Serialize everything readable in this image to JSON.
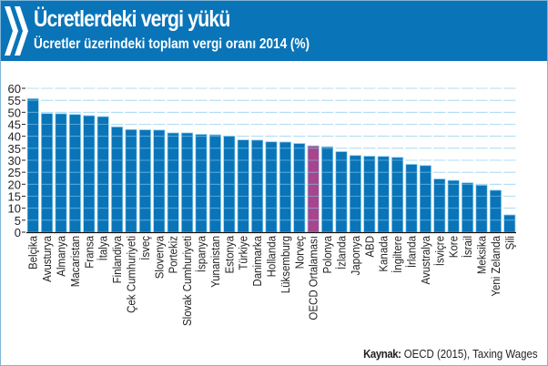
{
  "header": {
    "title": "Ücretlerdeki vergi yükü",
    "subtitle": "Ücretler üzerindeki toplam vergi oranı 2014 (%)",
    "logo_icon": "double-chevron-icon"
  },
  "source": {
    "label": "Kaynak:",
    "text": "OECD (2015), Taxing Wages"
  },
  "colors": {
    "header": "#0a74b8",
    "bar": "#0a74b8",
    "highlight": "#a8458c",
    "bar_edge": "#8fd0f0"
  },
  "chart_data": {
    "type": "bar",
    "title": "Ücretler üzerindeki toplam vergi oranı 2014 (%)",
    "xlabel": "",
    "ylabel": "",
    "ylim": [
      0,
      60
    ],
    "yticks": [
      0,
      5,
      10,
      15,
      20,
      25,
      30,
      35,
      40,
      45,
      50,
      55,
      60
    ],
    "grid": true,
    "highlight": "OECD Ortalaması",
    "categories": [
      "Belçika",
      "Avusturya",
      "Almanya",
      "Macaristan",
      "Fransa",
      "İtalya",
      "Finlandiya",
      "Çek Cumhuriyeti",
      "İsveç",
      "Slovenya",
      "Portekiz",
      "Slovak Cumhuriyeti",
      "İspanya",
      "Yunanistan",
      "Estonya",
      "Türkiye",
      "Danimarka",
      "Hollanda",
      "Lüksemburg",
      "Norveç",
      "OECD Ortalaması",
      "Polonya",
      "İzlanda",
      "Japonya",
      "ABD",
      "Kanada",
      "İngiltere",
      "İrlanda",
      "Avustralya",
      "İsviçre",
      "Kore",
      "İsrail",
      "Meksika",
      "Yeni Zelanda",
      "Şili"
    ],
    "values": [
      55.7,
      49.5,
      49.4,
      49.1,
      48.6,
      48.2,
      43.9,
      42.8,
      42.7,
      42.6,
      41.4,
      41.4,
      40.8,
      40.6,
      40.1,
      38.5,
      38.4,
      37.7,
      37.6,
      37.0,
      36.0,
      35.6,
      33.6,
      32.0,
      31.7,
      31.6,
      31.2,
      28.3,
      27.8,
      22.2,
      21.6,
      20.6,
      19.6,
      17.5,
      7.2
    ]
  }
}
